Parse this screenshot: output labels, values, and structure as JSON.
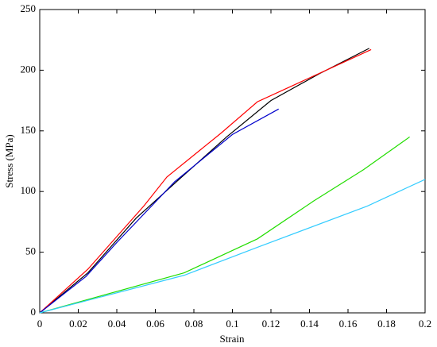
{
  "chart_data": {
    "type": "line",
    "x_label": "Strain",
    "y_label": "Stress (MPa)",
    "xlim": [
      0,
      0.2
    ],
    "xticks": [
      0,
      0.02,
      0.04,
      0.06,
      0.08,
      0.1,
      0.12,
      0.14,
      0.16,
      0.18,
      0.2
    ],
    "ylim": [
      0,
      250
    ],
    "yticks": [
      0,
      50,
      100,
      150,
      200,
      250
    ],
    "grid": false,
    "series": [
      {
        "color": "#000000",
        "x": [
          0,
          0.025,
          0.05,
          0.073,
          0.097,
          0.12,
          0.145,
          0.171
        ],
        "values": [
          0,
          33,
          78,
          111,
          145,
          175,
          197,
          218
        ]
      },
      {
        "color": "#ff0000",
        "x": [
          0,
          0.025,
          0.054,
          0.066,
          0.094,
          0.113,
          0.146,
          0.172
        ],
        "values": [
          0,
          36,
          88,
          112,
          148,
          174,
          198,
          217
        ]
      },
      {
        "color": "#0000cc",
        "x": [
          0,
          0.024,
          0.04,
          0.07,
          0.1,
          0.124
        ],
        "values": [
          0,
          30,
          58,
          108,
          147,
          168
        ]
      },
      {
        "color": "#22dd00",
        "x": [
          0,
          0.075,
          0.113,
          0.142,
          0.168,
          0.192
        ],
        "values": [
          0,
          33,
          61,
          92,
          118,
          145
        ]
      },
      {
        "color": "#33ccff",
        "x": [
          0,
          0.075,
          0.113,
          0.17,
          0.2
        ],
        "values": [
          0,
          31,
          54,
          88,
          110
        ]
      }
    ]
  }
}
